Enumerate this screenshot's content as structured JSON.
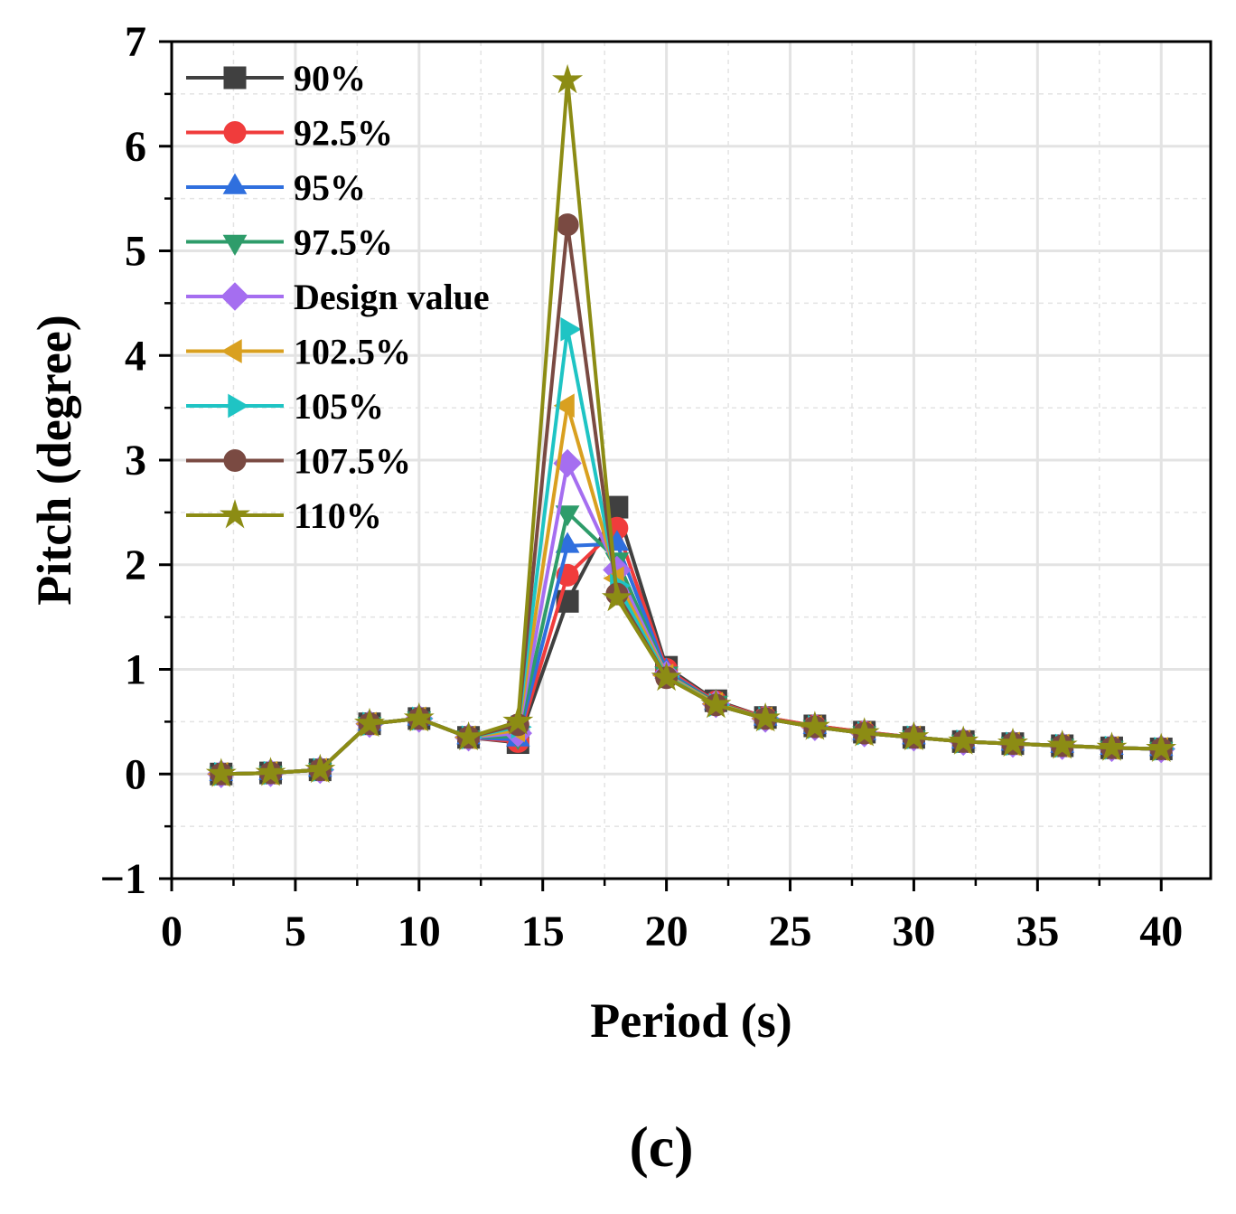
{
  "chart_data": {
    "type": "line",
    "title": "",
    "xlabel": "Period (s)",
    "ylabel": "Pitch (degree)",
    "xlim": [
      0,
      42
    ],
    "ylim": [
      -1,
      7
    ],
    "xticks": [
      0,
      5,
      10,
      15,
      20,
      25,
      30,
      35,
      40
    ],
    "yticks": [
      -1,
      0,
      1,
      2,
      3,
      4,
      5,
      6,
      7
    ],
    "xtick_labels": [
      "0",
      "5",
      "10",
      "15",
      "20",
      "25",
      "30",
      "35",
      "40"
    ],
    "ytick_labels": [
      "−1",
      "0",
      "1",
      "2",
      "3",
      "4",
      "5",
      "6",
      "7"
    ],
    "grid": true,
    "legend_position": "top-left",
    "caption": "(c)",
    "x": [
      2,
      4,
      6,
      8,
      10,
      12,
      14,
      16,
      18,
      20,
      22,
      24,
      26,
      28,
      30,
      32,
      34,
      36,
      38,
      40
    ],
    "series": [
      {
        "name": "90%",
        "color": "#404040",
        "marker": "square",
        "values": [
          0,
          0.01,
          0.04,
          0.48,
          0.53,
          0.35,
          0.3,
          1.65,
          2.55,
          1.02,
          0.7,
          0.54,
          0.46,
          0.4,
          0.35,
          0.31,
          0.29,
          0.27,
          0.25,
          0.24
        ]
      },
      {
        "name": "92.5%",
        "color": "#f03c3c",
        "marker": "circle",
        "values": [
          0,
          0.01,
          0.04,
          0.48,
          0.53,
          0.35,
          0.31,
          1.9,
          2.35,
          1.0,
          0.69,
          0.54,
          0.46,
          0.4,
          0.35,
          0.31,
          0.29,
          0.27,
          0.25,
          0.24
        ]
      },
      {
        "name": "95%",
        "color": "#2f6fde",
        "marker": "triangle-up",
        "values": [
          0,
          0.01,
          0.04,
          0.48,
          0.53,
          0.35,
          0.33,
          2.18,
          2.2,
          0.98,
          0.68,
          0.53,
          0.45,
          0.39,
          0.35,
          0.31,
          0.29,
          0.27,
          0.25,
          0.24
        ]
      },
      {
        "name": "97.5%",
        "color": "#2e9c6a",
        "marker": "triangle-down",
        "values": [
          0,
          0.01,
          0.04,
          0.48,
          0.53,
          0.35,
          0.36,
          2.5,
          2.05,
          0.96,
          0.68,
          0.53,
          0.45,
          0.39,
          0.35,
          0.31,
          0.29,
          0.27,
          0.25,
          0.24
        ]
      },
      {
        "name": "Design value",
        "color": "#a56ef0",
        "marker": "diamond",
        "values": [
          0,
          0.01,
          0.04,
          0.48,
          0.53,
          0.35,
          0.39,
          2.97,
          1.95,
          0.95,
          0.67,
          0.53,
          0.45,
          0.39,
          0.35,
          0.31,
          0.29,
          0.27,
          0.25,
          0.24
        ]
      },
      {
        "name": "102.5%",
        "color": "#d9a020",
        "marker": "triangle-left",
        "values": [
          0,
          0.01,
          0.04,
          0.48,
          0.53,
          0.35,
          0.42,
          3.52,
          1.87,
          0.94,
          0.67,
          0.53,
          0.45,
          0.39,
          0.35,
          0.31,
          0.29,
          0.27,
          0.25,
          0.24
        ]
      },
      {
        "name": "105%",
        "color": "#1fc4c4",
        "marker": "triangle-right",
        "values": [
          0,
          0.01,
          0.04,
          0.48,
          0.53,
          0.35,
          0.45,
          4.25,
          1.8,
          0.93,
          0.66,
          0.53,
          0.45,
          0.39,
          0.35,
          0.31,
          0.29,
          0.27,
          0.25,
          0.24
        ]
      },
      {
        "name": "107.5%",
        "color": "#7a4a42",
        "marker": "circle",
        "values": [
          0,
          0.01,
          0.04,
          0.48,
          0.53,
          0.35,
          0.47,
          5.25,
          1.72,
          0.92,
          0.66,
          0.53,
          0.45,
          0.39,
          0.35,
          0.31,
          0.29,
          0.27,
          0.25,
          0.24
        ]
      },
      {
        "name": "110%",
        "color": "#8c8c14",
        "marker": "star",
        "values": [
          0,
          0.01,
          0.04,
          0.48,
          0.53,
          0.35,
          0.5,
          6.63,
          1.68,
          0.92,
          0.66,
          0.53,
          0.45,
          0.39,
          0.35,
          0.31,
          0.29,
          0.27,
          0.25,
          0.24
        ]
      }
    ]
  }
}
